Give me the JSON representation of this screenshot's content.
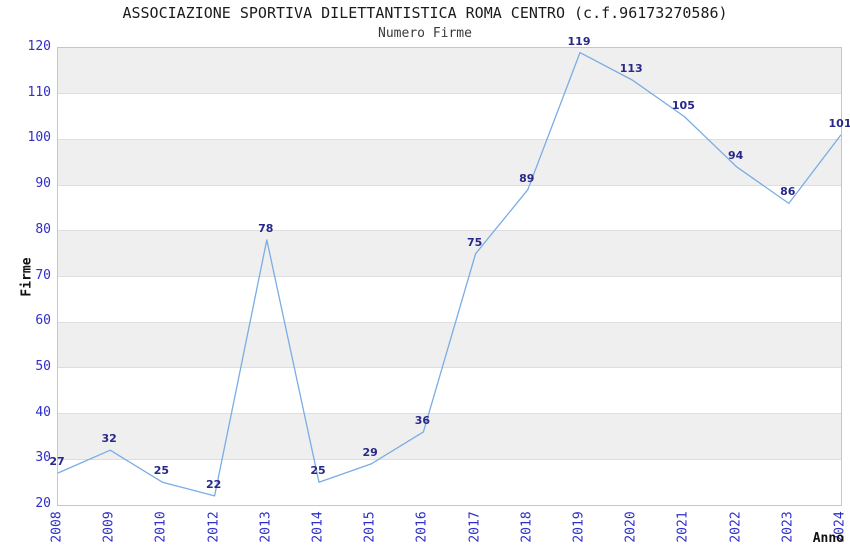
{
  "chart_data": {
    "type": "line",
    "title": "ASSOCIAZIONE SPORTIVA DILETTANTISTICA ROMA CENTRO (c.f.96173270586)",
    "subtitle": "Numero Firme",
    "xlabel": "Anno",
    "ylabel": "Firme",
    "categories": [
      "2008",
      "2009",
      "2010",
      "2012",
      "2013",
      "2014",
      "2015",
      "2016",
      "2017",
      "2018",
      "2019",
      "2020",
      "2021",
      "2022",
      "2023",
      "2024"
    ],
    "values": [
      27,
      32,
      25,
      22,
      78,
      25,
      29,
      36,
      75,
      89,
      119,
      113,
      105,
      94,
      86,
      101
    ],
    "ylim": [
      20,
      120
    ],
    "ytick_step": 10,
    "yticks": [
      20,
      30,
      40,
      50,
      60,
      70,
      80,
      90,
      100,
      110,
      120
    ],
    "grid": "alternating-horizontal-bands",
    "legend_position": "none",
    "colors": {
      "line": "#79ade4",
      "band": "#efefef",
      "gridline": "#dedede",
      "spine": "#c6c6c6",
      "tick_label": "#2e2ec8",
      "data_label": "#28288a",
      "title": "#1b1b1b",
      "subtitle": "#3a3a3a"
    }
  }
}
